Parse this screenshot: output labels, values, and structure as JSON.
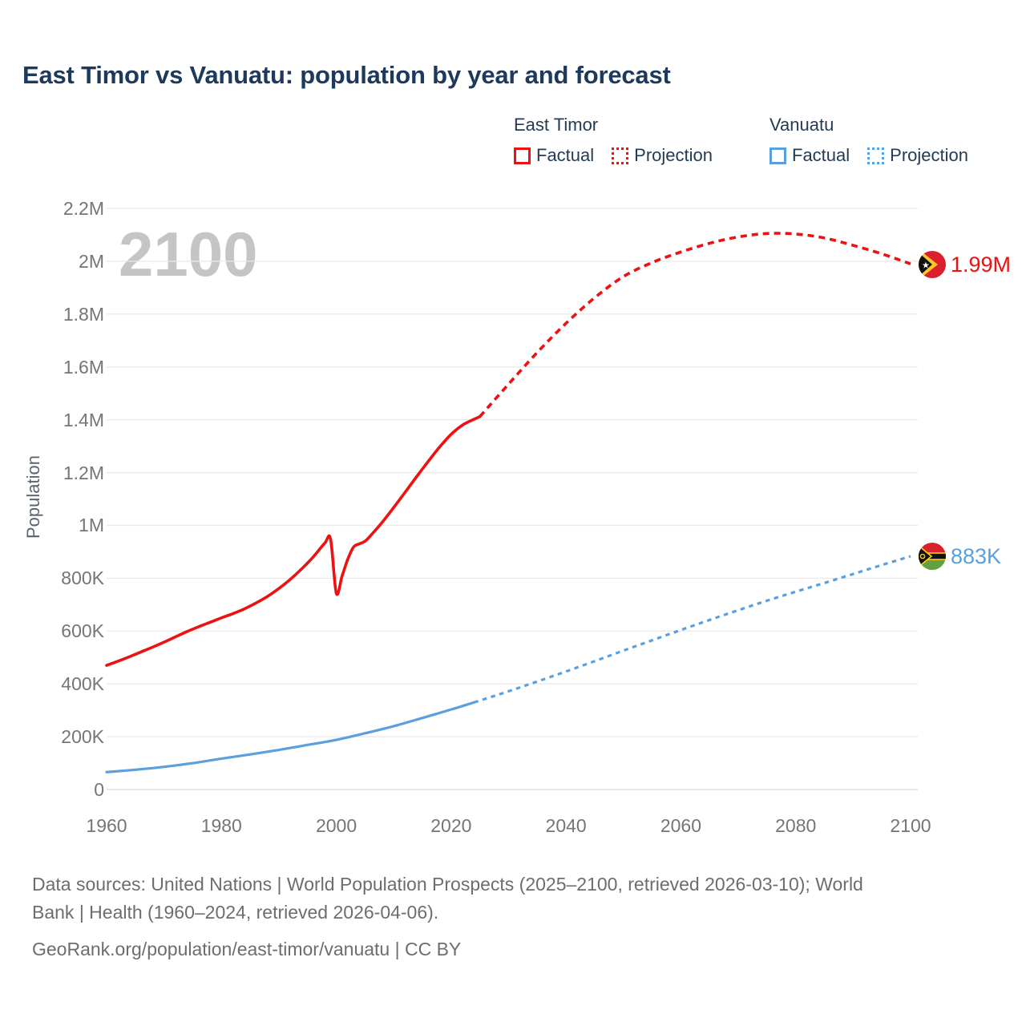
{
  "title": "East Timor vs Vanuatu: population by year and forecast",
  "watermark": {
    "text": "2100"
  },
  "legend": {
    "groups": [
      {
        "country": "East Timor",
        "factual_label": "Factual",
        "projection_label": "Projection",
        "color": "#ee1111"
      },
      {
        "country": "Vanuatu",
        "factual_label": "Factual",
        "projection_label": "Projection",
        "color": "#5b9fdd"
      }
    ]
  },
  "end_labels": [
    {
      "series": "East Timor",
      "value_label": "1.99M",
      "flag_icon": "east-timor-flag",
      "color": "#ee1111"
    },
    {
      "series": "Vanuatu",
      "value_label": "883K",
      "flag_icon": "vanuatu-flag",
      "color": "#5b9fdd"
    }
  ],
  "footer": {
    "lines": [
      "Data sources: United Nations | World Population Prospects (2025–2100, retrieved 2026-03-10); World",
      "Bank | Health (1960–2024, retrieved 2026-04-06).",
      "GeoRank.org/population/east-timor/vanuatu | CC BY"
    ]
  },
  "colors": {
    "east_timor": "#ee1111",
    "vanuatu": "#5b9fdd",
    "title_text": "#1d3a5c",
    "tick_text": "#757575",
    "gridline": "#e9e9e9",
    "zero_line": "#e0e0e0",
    "watermark": "#c5c5c5",
    "footer_text": "#6d6d6d"
  },
  "chart_data": {
    "type": "line",
    "title": "East Timor vs Vanuatu: population by year and forecast",
    "xlabel": "",
    "ylabel": "Population",
    "units": "thousands of people",
    "xlim": [
      1960,
      2100
    ],
    "ylim_thousands": [
      0,
      2200
    ],
    "grid": "horizontal-only",
    "legend_position": "top-right",
    "xticks": [
      1960,
      1980,
      2000,
      2020,
      2040,
      2060,
      2080,
      2100
    ],
    "yticks": {
      "values_thousands": [
        0,
        200,
        400,
        600,
        800,
        1000,
        1200,
        1400,
        1600,
        1800,
        2000,
        2200
      ],
      "labels": [
        "0",
        "200K",
        "400K",
        "600K",
        "800K",
        "1M",
        "1.2M",
        "1.4M",
        "1.6M",
        "1.8M",
        "2M",
        "2.2M"
      ]
    },
    "series": [
      {
        "name": "East Timor Factual",
        "style": "solid",
        "color": "#ee1111",
        "end_value_label": null,
        "points_year_thousands": [
          [
            1960,
            470
          ],
          [
            1962,
            486
          ],
          [
            1964,
            503
          ],
          [
            1966,
            521
          ],
          [
            1968,
            539
          ],
          [
            1970,
            558
          ],
          [
            1972,
            578
          ],
          [
            1974,
            598
          ],
          [
            1976,
            616
          ],
          [
            1978,
            633
          ],
          [
            1980,
            650
          ],
          [
            1982,
            666
          ],
          [
            1984,
            684
          ],
          [
            1986,
            706
          ],
          [
            1988,
            731
          ],
          [
            1990,
            761
          ],
          [
            1992,
            796
          ],
          [
            1994,
            836
          ],
          [
            1996,
            881
          ],
          [
            1998,
            933
          ],
          [
            1999,
            948
          ],
          [
            2000,
            743
          ],
          [
            2001,
            808
          ],
          [
            2002,
            872
          ],
          [
            2003,
            918
          ],
          [
            2004,
            930
          ],
          [
            2005,
            940
          ],
          [
            2006,
            962
          ],
          [
            2008,
            1012
          ],
          [
            2010,
            1068
          ],
          [
            2012,
            1126
          ],
          [
            2014,
            1185
          ],
          [
            2016,
            1242
          ],
          [
            2018,
            1297
          ],
          [
            2020,
            1345
          ],
          [
            2022,
            1380
          ],
          [
            2024,
            1402
          ],
          [
            2025,
            1412
          ]
        ]
      },
      {
        "name": "East Timor Projection",
        "style": "dashed",
        "color": "#ee1111",
        "end_value_label": "1.99M",
        "points_year_thousands": [
          [
            2025,
            1412
          ],
          [
            2030,
            1535
          ],
          [
            2035,
            1655
          ],
          [
            2040,
            1765
          ],
          [
            2045,
            1862
          ],
          [
            2050,
            1942
          ],
          [
            2055,
            1995
          ],
          [
            2060,
            2035
          ],
          [
            2065,
            2068
          ],
          [
            2070,
            2092
          ],
          [
            2075,
            2105
          ],
          [
            2080,
            2103
          ],
          [
            2085,
            2088
          ],
          [
            2090,
            2060
          ],
          [
            2095,
            2028
          ],
          [
            2100,
            1990
          ]
        ]
      },
      {
        "name": "Vanuatu Factual",
        "style": "solid",
        "color": "#5b9fdd",
        "end_value_label": null,
        "points_year_thousands": [
          [
            1960,
            66
          ],
          [
            1965,
            75
          ],
          [
            1970,
            86
          ],
          [
            1975,
            100
          ],
          [
            1980,
            117
          ],
          [
            1985,
            133
          ],
          [
            1990,
            150
          ],
          [
            1995,
            169
          ],
          [
            2000,
            188
          ],
          [
            2005,
            213
          ],
          [
            2010,
            240
          ],
          [
            2015,
            271
          ],
          [
            2020,
            303
          ],
          [
            2024,
            330
          ]
        ]
      },
      {
        "name": "Vanuatu Projection",
        "style": "dashed",
        "color": "#5b9fdd",
        "end_value_label": "883K",
        "points_year_thousands": [
          [
            2024,
            330
          ],
          [
            2030,
            372
          ],
          [
            2035,
            409
          ],
          [
            2040,
            447
          ],
          [
            2045,
            486
          ],
          [
            2050,
            526
          ],
          [
            2055,
            565
          ],
          [
            2060,
            604
          ],
          [
            2065,
            642
          ],
          [
            2070,
            679
          ],
          [
            2075,
            715
          ],
          [
            2080,
            749
          ],
          [
            2085,
            782
          ],
          [
            2090,
            816
          ],
          [
            2095,
            850
          ],
          [
            2100,
            883
          ]
        ]
      }
    ]
  }
}
